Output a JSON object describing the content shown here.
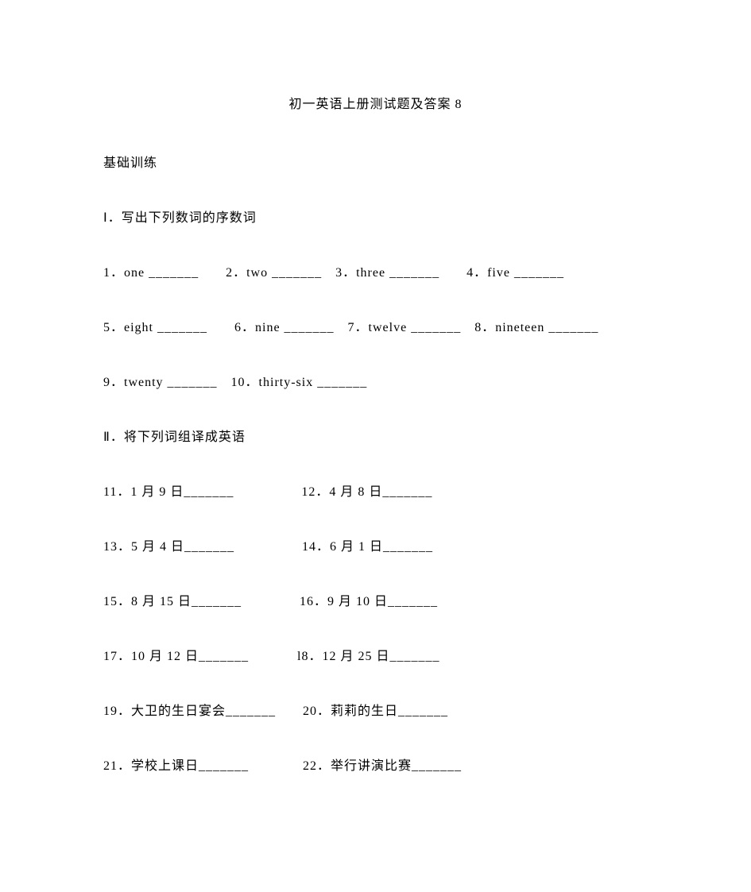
{
  "title": "初一英语上册测试题及答案 8",
  "section_basic": "基础训练",
  "section1": {
    "heading": "Ⅰ．写出下列数词的序数词",
    "line1": "1．one _______　　2．two _______　3．three _______　　4．five _______",
    "line2": "5．eight _______　　6．nine _______　7．twelve _______　8．nineteen _______",
    "line3": "9．twenty _______　10．thirty-six _______"
  },
  "section2": {
    "heading": "Ⅱ．将下列词组译成英语",
    "line1": "11．1 月 9 日_______　　　　　12．4 月 8 日_______",
    "line2": "13．5 月 4 日_______　　　　　14．6 月 1 日_______",
    "line3": "15．8 月 15 日_______　　　　 16．9 月 10 日_______",
    "line4": "17．10 月 12 日_______　　　  l8．12 月 25 日_______",
    "line5": "19．大卫的生日宴会_______　　20．莉莉的生日_______",
    "line6": "21．学校上课日_______　　　　22．举行讲演比赛_______"
  }
}
